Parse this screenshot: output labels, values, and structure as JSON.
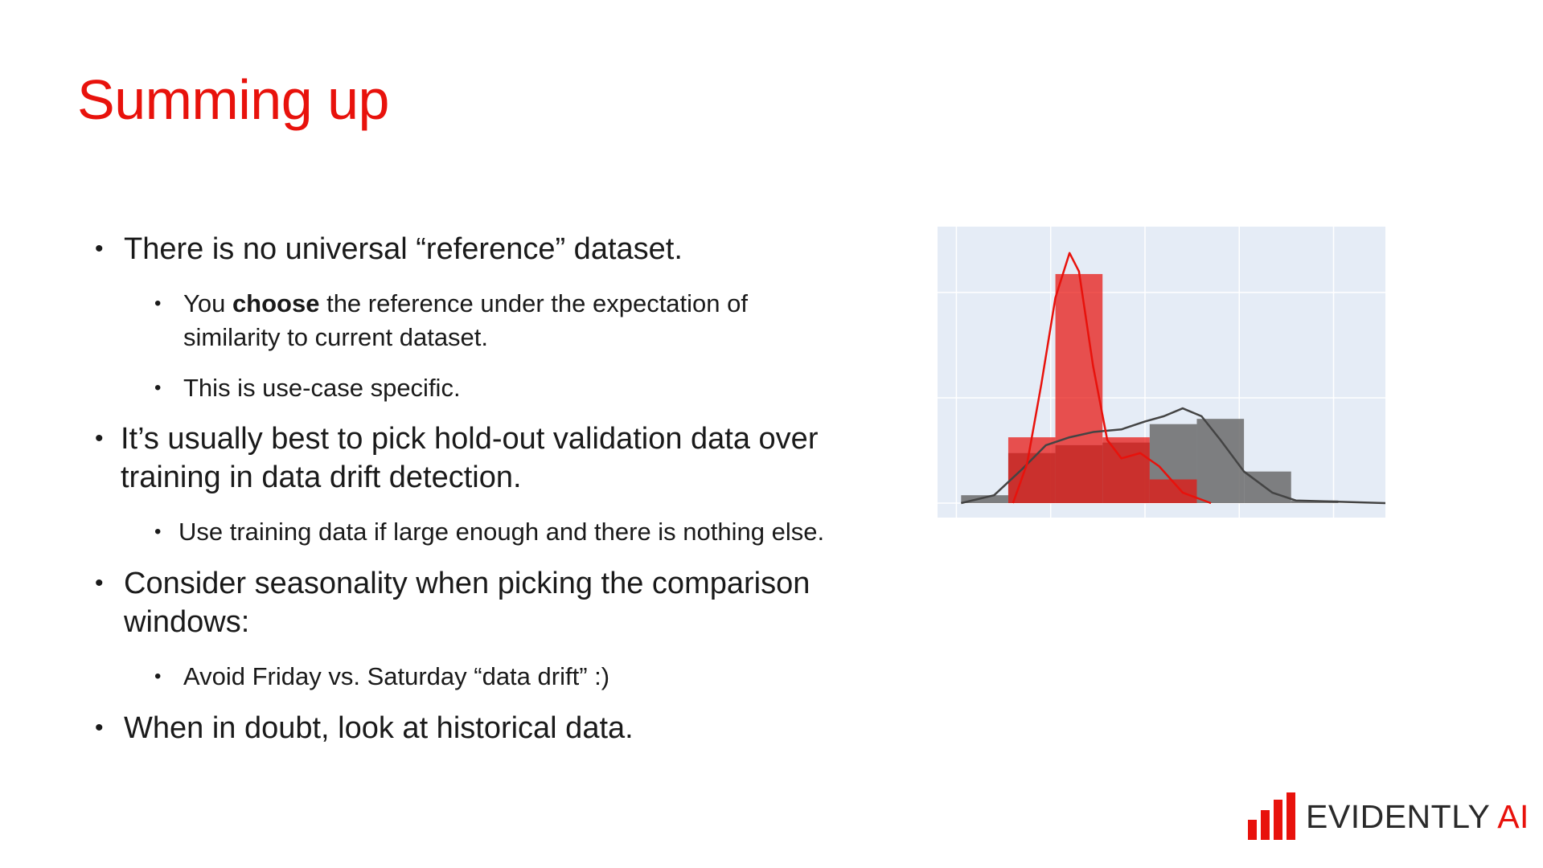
{
  "slide": {
    "title": "Summing up",
    "bullets": [
      {
        "level": 1,
        "lines": [
          "There is no universal “reference” dataset."
        ]
      },
      {
        "level": 2,
        "prefix": "You ",
        "bold": "choose",
        "suffix": " the reference under the expectation of",
        "lines": [
          "similarity to current dataset."
        ]
      },
      {
        "level": 2,
        "lines": [
          "This is use-case specific."
        ]
      },
      {
        "level": 1,
        "lines": [
          "It’s usually best to pick hold-out validation data over",
          "training in data drift detection."
        ]
      },
      {
        "level": 2,
        "lines": [
          "Use training data if large enough and there is nothing else."
        ]
      },
      {
        "level": 1,
        "lines": [
          "Consider seasonality when picking the comparison",
          "windows:"
        ]
      },
      {
        "level": 2,
        "lines": [
          "Avoid Friday vs. Saturday “data drift” :)"
        ]
      },
      {
        "level": 1,
        "lines": [
          "When in doubt, look at historical data."
        ]
      }
    ],
    "bullet_char": "•"
  },
  "logo": {
    "main": "EVIDENTLY",
    "accent": "AI",
    "accent_color": "#e8120c"
  },
  "chart_data": {
    "type": "bar",
    "title": "",
    "xlabel": "",
    "ylabel": "",
    "grid": true,
    "background": "#e5ecf6",
    "xlim": [
      0,
      9.5
    ],
    "ylim": [
      0,
      1.05
    ],
    "bin_edges": [
      0.5,
      1.5,
      2.5,
      3.5,
      4.5,
      5.5,
      6.5,
      7.5,
      8.5
    ],
    "series": [
      {
        "color": "#6b6b6b",
        "values": [
          0.03,
          0.19,
          0.22,
          0.23,
          0.3,
          0.32,
          0.12,
          0.01
        ]
      },
      {
        "color": "#e8120c",
        "values": [
          0.0,
          0.25,
          0.87,
          0.25,
          0.09,
          0.0,
          0.0,
          0.0
        ]
      }
    ],
    "density_lines": [
      {
        "color": "#444444",
        "points": [
          [
            0.5,
            0.0
          ],
          [
            1.2,
            0.03
          ],
          [
            1.8,
            0.13
          ],
          [
            2.3,
            0.22
          ],
          [
            2.8,
            0.25
          ],
          [
            3.3,
            0.27
          ],
          [
            3.9,
            0.28
          ],
          [
            4.4,
            0.31
          ],
          [
            4.8,
            0.33
          ],
          [
            5.2,
            0.36
          ],
          [
            5.6,
            0.33
          ],
          [
            6.0,
            0.24
          ],
          [
            6.5,
            0.12
          ],
          [
            7.1,
            0.04
          ],
          [
            7.6,
            0.01
          ],
          [
            9.5,
            0.0
          ]
        ]
      },
      {
        "color": "#e8120c",
        "points": [
          [
            1.6,
            0.0
          ],
          [
            1.9,
            0.15
          ],
          [
            2.2,
            0.45
          ],
          [
            2.5,
            0.78
          ],
          [
            2.8,
            0.95
          ],
          [
            3.0,
            0.88
          ],
          [
            3.3,
            0.52
          ],
          [
            3.6,
            0.24
          ],
          [
            3.9,
            0.17
          ],
          [
            4.3,
            0.19
          ],
          [
            4.7,
            0.14
          ],
          [
            5.2,
            0.04
          ],
          [
            5.8,
            0.0
          ]
        ]
      }
    ]
  }
}
